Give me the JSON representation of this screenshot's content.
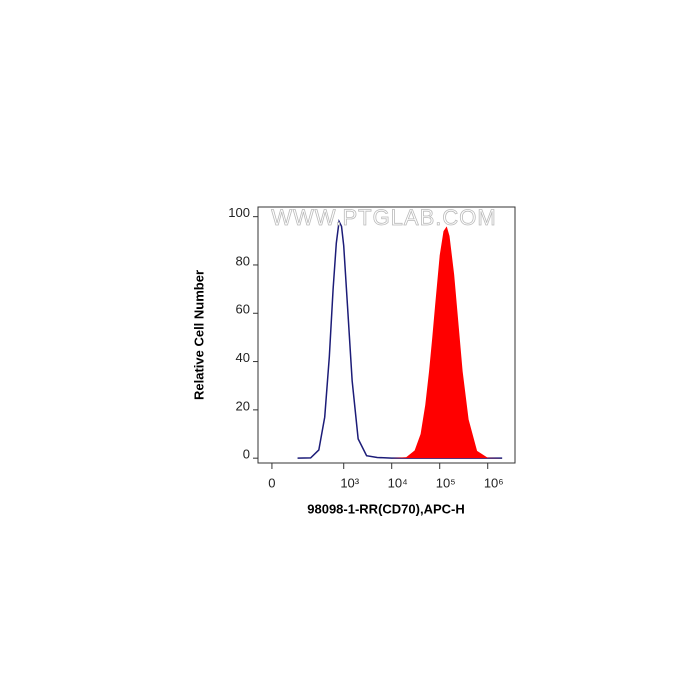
{
  "chart_data": {
    "type": "histogram-overlay",
    "watermark": "WWW.PTGLAB.COM",
    "xlabel": "98098-1-RR(CD70),APC-H",
    "ylabel": "Relative Cell Number",
    "xscale": "biexponential",
    "xlim": [
      -46,
      3700000
    ],
    "xticks": [
      0,
      {
        "value": 1000,
        "label": "10³"
      },
      {
        "value": 10000,
        "label": "10⁴"
      },
      {
        "value": 100000,
        "label": "10⁵"
      },
      {
        "value": 1000000,
        "label": "10⁶"
      }
    ],
    "ylim": [
      -2,
      104
    ],
    "yticks": [
      0,
      20,
      40,
      60,
      80,
      100
    ],
    "x": [
      100,
      200,
      300,
      400,
      500,
      600,
      700,
      800,
      900,
      1000,
      1200,
      1500,
      2000,
      3000,
      5000,
      10000,
      20000,
      30000,
      40000,
      50000,
      60000,
      70000,
      80000,
      100000,
      120000,
      140000,
      160000,
      200000,
      250000,
      300000,
      400000,
      600000,
      1000000,
      2000000
    ],
    "series": [
      {
        "color": "#1c1c78",
        "fill": false,
        "values": [
          0,
          0.1,
          3.4,
          17,
          42,
          70,
          89,
          98,
          96,
          88,
          63,
          32,
          8,
          1,
          0.3,
          0,
          0,
          0,
          0,
          0,
          0,
          0,
          0,
          0,
          0,
          0,
          0,
          0,
          0,
          0,
          0,
          0,
          0,
          0
        ]
      },
      {
        "color": "#ff0000",
        "fill": true,
        "values": [
          0,
          0,
          0,
          0,
          0,
          0,
          0,
          0,
          0,
          0,
          0,
          0,
          0,
          0,
          0,
          0,
          0.4,
          3.2,
          10,
          22,
          36,
          50,
          63,
          84,
          94,
          96,
          92,
          76,
          54,
          36,
          16,
          3,
          0.2,
          0
        ]
      }
    ]
  }
}
